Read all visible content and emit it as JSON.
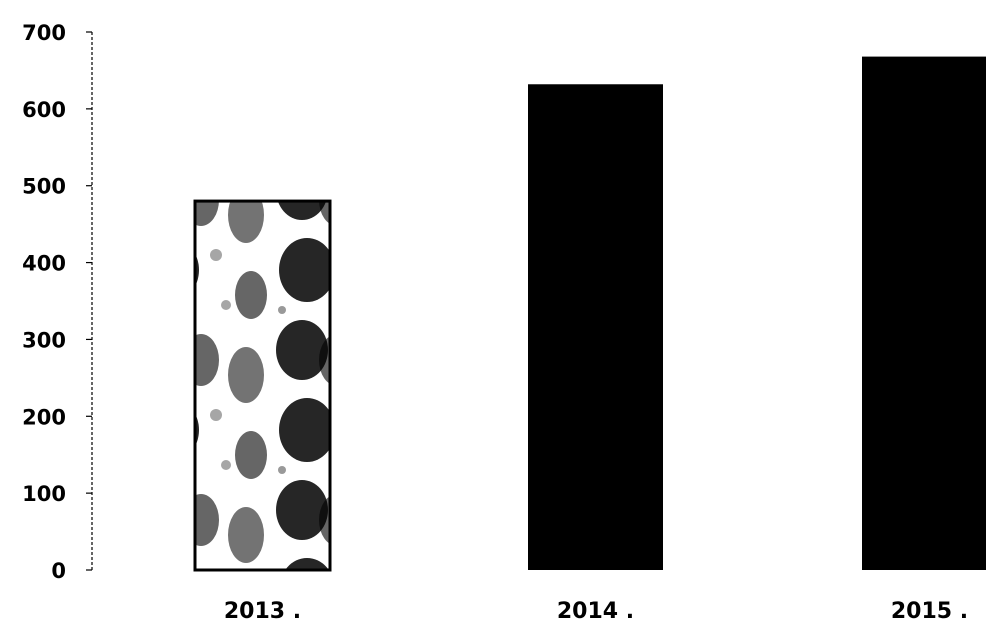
{
  "chart_data": {
    "type": "bar",
    "categories": [
      "2013 .",
      "2014 .",
      "2015 ."
    ],
    "values": [
      480,
      632,
      668
    ],
    "ylim": [
      0,
      700
    ],
    "yticks": [
      "0",
      "100",
      "200",
      "300",
      "400",
      "500",
      "600",
      "700"
    ],
    "grid": false,
    "legend": "none",
    "bar_fills": [
      "mottled-pattern",
      "#000000",
      "#000000"
    ]
  }
}
